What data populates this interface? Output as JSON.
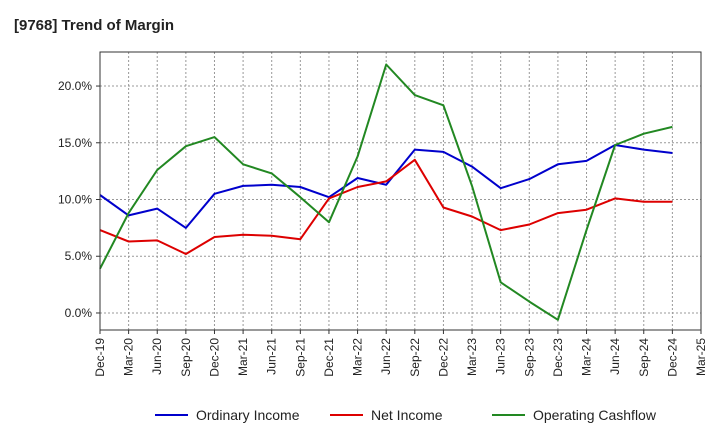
{
  "chart_data": {
    "type": "line",
    "title": "[9768]  Trend of Margin",
    "xlabel": "",
    "ylabel": "",
    "x": [
      "Dec-19",
      "Mar-20",
      "Jun-20",
      "Sep-20",
      "Dec-20",
      "Mar-21",
      "Jun-21",
      "Sep-21",
      "Dec-21",
      "Mar-22",
      "Jun-22",
      "Sep-22",
      "Dec-22",
      "Mar-23",
      "Jun-23",
      "Sep-23",
      "Dec-23",
      "Mar-24",
      "Jun-24",
      "Sep-24",
      "Dec-24",
      "Mar-25"
    ],
    "ylim": [
      -1.5,
      23.0
    ],
    "yticks": [
      0,
      5,
      10,
      15,
      20
    ],
    "ytick_labels": [
      "0.0%",
      "5.0%",
      "10.0%",
      "15.0%",
      "20.0%"
    ],
    "grid": true,
    "legend_position": "bottom",
    "series": [
      {
        "name": "Ordinary Income",
        "color": "#0000cc",
        "values": [
          10.4,
          8.6,
          9.2,
          7.5,
          10.5,
          11.2,
          11.3,
          11.1,
          10.2,
          11.9,
          11.3,
          14.4,
          14.2,
          12.9,
          11.0,
          11.8,
          13.1,
          13.4,
          14.8,
          14.4,
          14.1,
          null
        ]
      },
      {
        "name": "Net Income",
        "color": "#dd0000",
        "values": [
          7.3,
          6.3,
          6.4,
          5.2,
          6.7,
          6.9,
          6.8,
          6.5,
          10.1,
          11.1,
          11.6,
          13.5,
          9.3,
          8.5,
          7.3,
          7.8,
          8.8,
          9.1,
          10.1,
          9.8,
          9.8,
          null
        ]
      },
      {
        "name": "Operating Cashflow",
        "color": "#228822",
        "values": [
          3.9,
          8.8,
          12.6,
          14.7,
          15.5,
          13.1,
          12.3,
          10.2,
          8.0,
          13.8,
          21.9,
          19.2,
          18.3,
          11.2,
          2.7,
          1.0,
          -0.6,
          7.3,
          14.8,
          15.8,
          16.4,
          null
        ]
      }
    ]
  }
}
